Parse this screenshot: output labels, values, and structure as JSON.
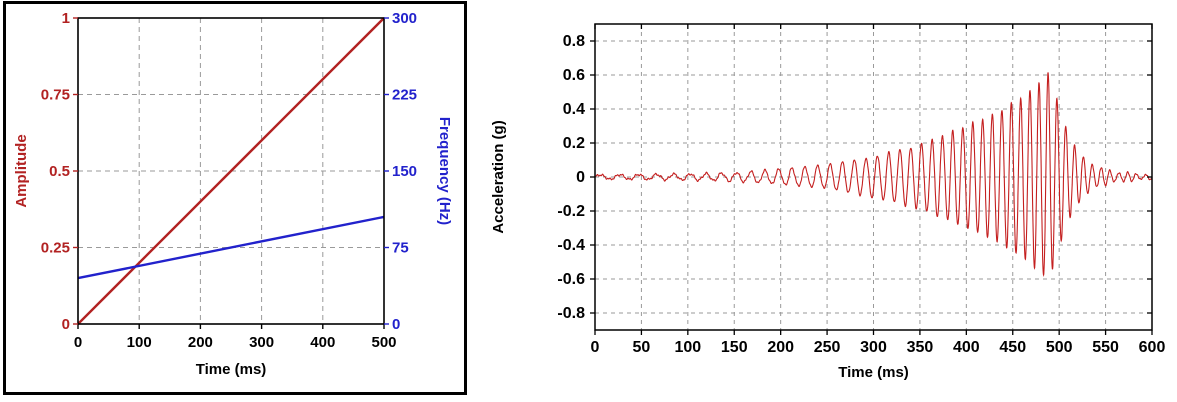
{
  "page": {
    "background": "#ffffff"
  },
  "chart_data": [
    {
      "id": "sweep-parameters",
      "type": "line",
      "title": "",
      "xlabel": "Time (ms)",
      "x_range": [
        0,
        500
      ],
      "x_ticks": [
        0,
        100,
        200,
        300,
        400,
        500
      ],
      "x_tick_labels": [
        "0",
        "100",
        "200",
        "300",
        "400",
        "500"
      ],
      "grid": "dashed",
      "grid_color": "#9a9a9a",
      "frame_color": "#000000",
      "axes": {
        "left": {
          "label": "Amplitude",
          "color": "#b22222",
          "range": [
            0,
            1
          ],
          "ticks": [
            0,
            0.25,
            0.5,
            0.75,
            1
          ],
          "tick_labels": [
            "0",
            "0.25",
            "0.5",
            "0.75",
            "1"
          ]
        },
        "right": {
          "label": "Frequency (Hz)",
          "color": "#2222cc",
          "range": [
            0,
            300
          ],
          "ticks": [
            0,
            75,
            150,
            225,
            300
          ],
          "tick_labels": [
            "0",
            "75",
            "150",
            "225",
            "300"
          ]
        }
      },
      "series": [
        {
          "name": "amplitude-ramp",
          "axis": "left",
          "color": "#b22222",
          "points": [
            [
              0,
              0
            ],
            [
              500,
              1
            ]
          ]
        },
        {
          "name": "frequency-sweep",
          "axis": "right",
          "color": "#2222cc",
          "points": [
            [
              0,
              45
            ],
            [
              500,
              105
            ]
          ]
        }
      ]
    },
    {
      "id": "acceleration-time-history",
      "type": "line",
      "title": "",
      "xlabel": "Time (ms)",
      "ylabel": "Acceleration (g)",
      "x_range": [
        0,
        600
      ],
      "x_ticks": [
        0,
        50,
        100,
        150,
        200,
        250,
        300,
        350,
        400,
        450,
        500,
        550,
        600
      ],
      "x_tick_labels": [
        "0",
        "50",
        "100",
        "150",
        "200",
        "250",
        "300",
        "350",
        "400",
        "450",
        "500",
        "550",
        "600"
      ],
      "y_range": [
        -0.9,
        0.9
      ],
      "y_ticks": [
        0.8,
        0.6,
        0.4,
        0.2,
        0,
        -0.2,
        -0.4,
        -0.6,
        -0.8
      ],
      "y_tick_labels": [
        "0.8",
        "0.6",
        "0.4",
        "0.2",
        "0",
        "-0.2",
        "-0.4",
        "-0.6",
        "-0.8"
      ],
      "grid": "dashed",
      "grid_color": "#9a9a9a",
      "frame_color": "#000000",
      "series": [
        {
          "name": "acceleration-chirp",
          "color": "#c41f1f",
          "signal": {
            "kind": "swept-sine-chirp",
            "freq_hz_start": 45,
            "freq_hz_end": 105,
            "sweep_duration_ms": 500,
            "peak_g": 0.62,
            "peak_time_ms": 488,
            "envelope_g": [
              [
                0,
                0.012
              ],
              [
                100,
                0.018
              ],
              [
                150,
                0.025
              ],
              [
                200,
                0.045
              ],
              [
                250,
                0.07
              ],
              [
                300,
                0.12
              ],
              [
                350,
                0.19
              ],
              [
                400,
                0.3
              ],
              [
                430,
                0.37
              ],
              [
                460,
                0.47
              ],
              [
                480,
                0.56
              ],
              [
                488,
                0.62
              ],
              [
                495,
                0.5
              ],
              [
                505,
                0.33
              ],
              [
                515,
                0.2
              ],
              [
                525,
                0.12
              ],
              [
                540,
                0.06
              ],
              [
                560,
                0.03
              ],
              [
                600,
                0.012
              ]
            ]
          }
        }
      ]
    }
  ]
}
